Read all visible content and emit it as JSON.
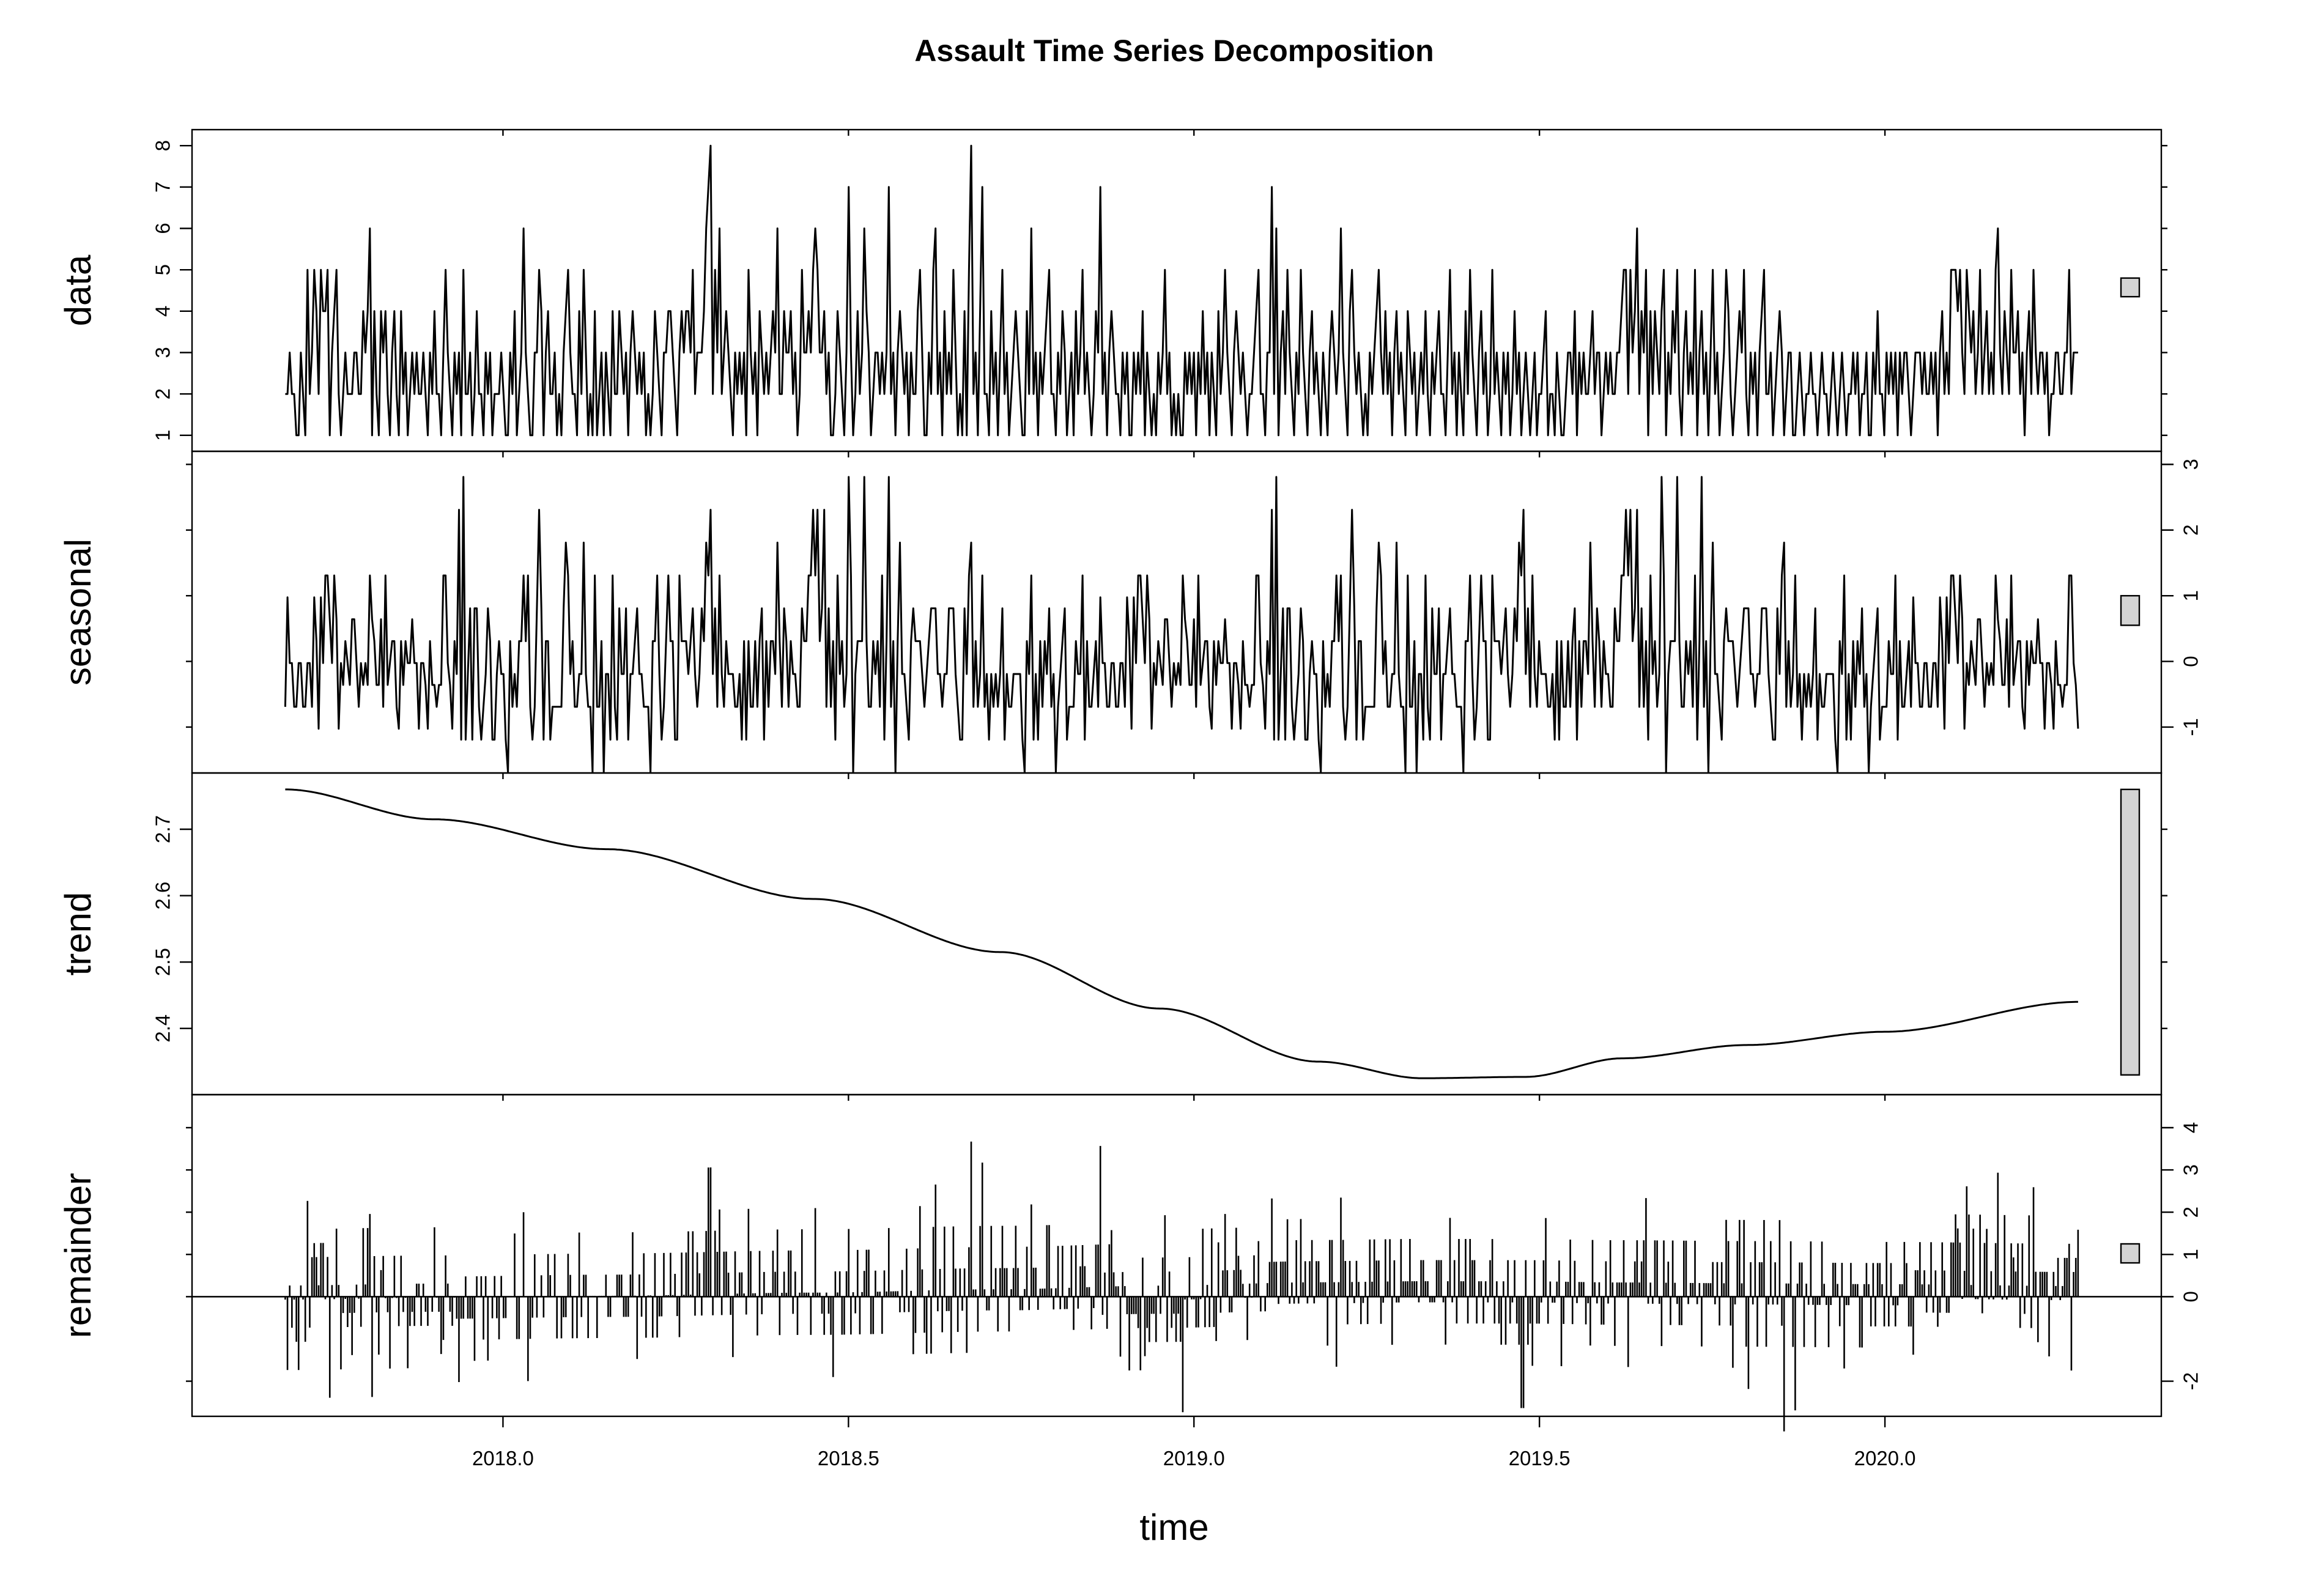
{
  "chart_data": {
    "type": "line",
    "title": "Assault Time Series Decomposition",
    "xlabel": "time",
    "xlim": [
      2017.55,
      2020.4
    ],
    "x_start": 2017.6849,
    "x_end": 2020.2795,
    "x_ticks": [
      "2018.0",
      "2018.5",
      "2019.0",
      "2019.5",
      "2020.0"
    ],
    "grid": false,
    "panels": [
      {
        "name": "data",
        "label": "data",
        "ylim": [
          0.85,
          8.15
        ],
        "y_ticks": [
          "1",
          "2",
          "3",
          "4",
          "5",
          "6",
          "7",
          "8"
        ],
        "axis_side": "left",
        "style": "line",
        "range_bar": [
          4.35,
          4.8
        ]
      },
      {
        "name": "seasonal",
        "label": "seasonal",
        "ylim": [
          -1.55,
          3.05
        ],
        "y_ticks": [
          "-1",
          "0",
          "1",
          "2",
          "3"
        ],
        "axis_side": "right",
        "style": "line",
        "range_bar": [
          0.55,
          1.0
        ]
      },
      {
        "name": "trend",
        "label": "trend",
        "ylim": [
          2.315,
          2.77
        ],
        "y_ticks": [
          "2.4",
          "2.5",
          "2.6",
          "2.7"
        ],
        "axis_side": "left",
        "style": "line",
        "range_bar": [
          2.33,
          2.76
        ]
      },
      {
        "name": "remainder",
        "label": "remainder",
        "ylim": [
          -2.6,
          4.55
        ],
        "y_ticks": [
          "-2",
          "0",
          "1",
          "2",
          "3",
          "4"
        ],
        "axis_side": "right",
        "style": "bars",
        "range_bar": [
          0.8,
          1.25
        ]
      }
    ],
    "series": {
      "data": [
        2,
        2,
        3,
        2,
        2,
        1,
        1,
        3,
        2,
        1,
        5,
        2,
        3,
        5,
        4,
        2,
        5,
        4,
        4,
        5,
        1,
        3,
        4,
        5,
        2,
        1,
        2,
        3,
        2,
        2,
        2,
        3,
        3,
        2,
        2,
        4,
        3,
        4,
        6,
        1,
        4,
        2,
        1,
        4,
        3,
        4,
        2,
        1,
        3,
        4,
        2,
        1,
        4,
        2,
        3,
        1,
        2,
        3,
        2,
        3,
        2,
        2,
        3,
        2,
        1,
        3,
        2,
        4,
        2,
        2,
        1,
        3,
        5,
        3,
        2,
        1,
        3,
        2,
        3,
        1,
        5,
        2,
        2,
        3,
        1,
        2,
        4,
        2,
        2,
        1,
        3,
        2,
        3,
        1,
        2,
        2,
        2,
        3,
        2,
        1,
        1,
        3,
        2,
        4,
        1,
        2,
        3,
        6,
        3,
        2,
        1,
        1,
        3,
        3,
        5,
        4,
        1,
        3,
        4,
        2,
        2,
        3,
        1,
        2,
        1,
        3,
        4,
        5,
        3,
        2,
        2,
        1,
        4,
        2,
        5,
        3,
        1,
        2,
        1,
        4,
        1,
        2,
        3,
        1,
        3,
        2,
        1,
        4,
        2,
        2,
        4,
        3,
        2,
        3,
        1,
        3,
        4,
        3,
        2,
        3,
        2,
        3,
        1,
        2,
        1,
        2,
        4,
        3,
        2,
        1,
        3,
        3,
        4,
        4,
        3,
        2,
        1,
        3,
        4,
        3,
        4,
        4,
        3,
        5,
        2,
        3,
        3,
        3,
        4,
        6,
        7,
        8,
        2,
        5,
        3,
        6,
        2,
        3,
        4,
        3,
        2,
        1,
        3,
        2,
        3,
        2,
        3,
        1,
        5,
        3,
        2,
        3,
        1,
        4,
        3,
        2,
        3,
        2,
        3,
        4,
        3,
        6,
        2,
        2,
        4,
        3,
        3,
        4,
        2,
        3,
        1,
        2,
        5,
        3,
        3,
        4,
        3,
        5,
        6,
        5,
        3,
        3,
        4,
        2,
        3,
        1,
        1,
        2,
        4,
        3,
        2,
        1,
        3,
        7,
        3,
        1,
        2,
        4,
        2,
        3,
        6,
        4,
        3,
        1,
        2,
        3,
        3,
        2,
        3,
        2,
        3,
        7,
        2,
        3,
        1,
        3,
        4,
        3,
        2,
        3,
        1,
        3,
        2,
        2,
        4,
        5,
        3,
        1,
        1,
        3,
        2,
        5,
        6,
        2,
        3,
        1,
        4,
        2,
        3,
        2,
        5,
        3,
        1,
        2,
        1,
        4,
        1,
        5,
        8,
        2,
        3,
        1,
        4,
        7,
        2,
        2,
        1,
        4,
        2,
        3,
        1,
        3,
        5,
        2,
        3,
        1,
        2,
        3,
        4,
        3,
        2,
        1,
        1,
        4,
        2,
        6,
        2,
        3,
        1,
        3,
        2,
        3,
        4,
        5,
        2,
        2,
        1,
        3,
        2,
        4,
        3,
        1,
        2,
        3,
        1,
        4,
        2,
        3,
        5,
        2,
        3,
        2,
        1,
        2,
        4,
        3,
        7,
        2,
        3,
        1,
        3,
        4,
        3,
        2,
        2,
        1,
        3,
        2,
        3,
        1,
        1,
        3,
        2,
        3,
        2,
        4,
        1,
        3,
        2,
        1,
        2,
        1,
        3,
        2,
        3,
        5,
        2,
        3,
        1,
        2,
        1,
        2,
        1,
        1,
        3,
        2,
        3,
        2,
        3,
        1,
        3,
        2,
        4,
        2,
        3,
        1,
        3,
        2,
        1,
        4,
        2,
        3,
        5,
        3,
        2,
        1,
        3,
        4,
        3,
        2,
        3,
        2,
        1,
        2,
        2,
        3,
        4,
        5,
        2,
        2,
        1,
        3,
        3,
        7,
        2,
        6,
        1,
        3,
        4,
        2,
        5,
        3,
        2,
        1,
        3,
        2,
        5,
        3,
        2,
        1,
        3,
        4,
        2,
        3,
        2,
        1,
        3,
        2,
        1,
        3,
        4,
        3,
        2,
        3,
        6,
        3,
        2,
        1,
        4,
        5,
        3,
        2,
        3,
        2,
        1,
        2,
        1,
        3,
        2,
        3,
        4,
        5,
        3,
        2,
        4,
        2,
        3,
        1,
        3,
        4,
        2,
        3,
        2,
        1,
        4,
        3,
        2,
        3,
        1,
        2,
        3,
        2,
        4,
        2,
        1,
        3,
        2,
        3,
        4,
        2,
        2,
        1,
        3,
        5,
        2,
        3,
        1,
        3,
        2,
        1,
        4,
        2,
        5,
        3,
        2,
        1,
        3,
        4,
        2,
        3,
        1,
        2,
        5,
        2,
        3,
        2,
        1,
        3,
        2,
        3,
        1,
        2,
        4,
        2,
        3,
        1,
        2,
        3,
        2,
        1,
        2,
        3,
        1,
        2,
        2,
        3,
        4,
        1,
        2,
        2,
        1,
        3,
        2,
        1,
        1,
        2,
        3,
        3,
        2,
        4,
        1,
        3,
        2,
        3,
        2,
        2,
        3,
        4,
        2,
        3,
        3,
        1,
        2,
        3,
        2,
        3,
        2,
        2,
        3,
        3,
        4,
        5,
        5,
        2,
        5,
        3,
        4,
        6,
        2,
        4,
        3,
        5,
        1,
        4,
        2,
        4,
        3,
        2,
        4,
        5,
        1,
        3,
        2,
        4,
        3,
        5,
        2,
        1,
        3,
        4,
        2,
        3,
        2,
        5,
        1,
        3,
        4,
        2,
        3,
        1,
        3,
        5,
        2,
        3,
        1,
        2,
        3,
        5,
        4,
        2,
        1,
        2,
        3,
        4,
        3,
        5,
        2,
        1,
        3,
        2,
        3,
        1,
        3,
        4,
        5,
        2,
        2,
        3,
        1,
        2,
        3,
        4,
        3,
        1,
        2,
        3,
        3,
        1,
        1,
        2,
        3,
        2,
        1,
        2,
        2,
        3,
        2,
        2,
        1,
        2,
        3,
        2,
        2,
        1,
        2,
        3,
        2,
        1,
        2,
        3,
        2,
        1,
        2,
        2,
        3,
        2,
        3,
        1,
        2,
        2,
        3,
        1,
        1,
        3,
        2,
        4,
        2,
        2,
        1,
        3,
        2,
        3,
        2,
        3,
        1,
        3,
        2,
        3,
        3,
        2,
        1,
        2,
        3,
        3,
        3,
        2,
        3,
        2,
        2,
        3,
        2,
        3,
        1,
        3,
        4,
        2,
        3,
        2,
        5,
        5,
        5,
        4,
        5,
        3,
        2,
        5,
        4,
        3,
        4,
        2,
        3,
        5,
        2,
        3,
        4,
        2,
        3,
        2,
        5,
        6,
        3,
        2,
        4,
        3,
        2,
        5,
        3,
        3,
        4,
        2,
        3,
        1,
        3,
        4,
        2,
        5,
        3,
        2,
        3,
        3,
        2,
        3,
        1,
        2,
        2,
        3,
        3,
        2,
        2,
        3,
        3,
        5,
        2,
        3,
        3,
        3
      ]
    }
  }
}
